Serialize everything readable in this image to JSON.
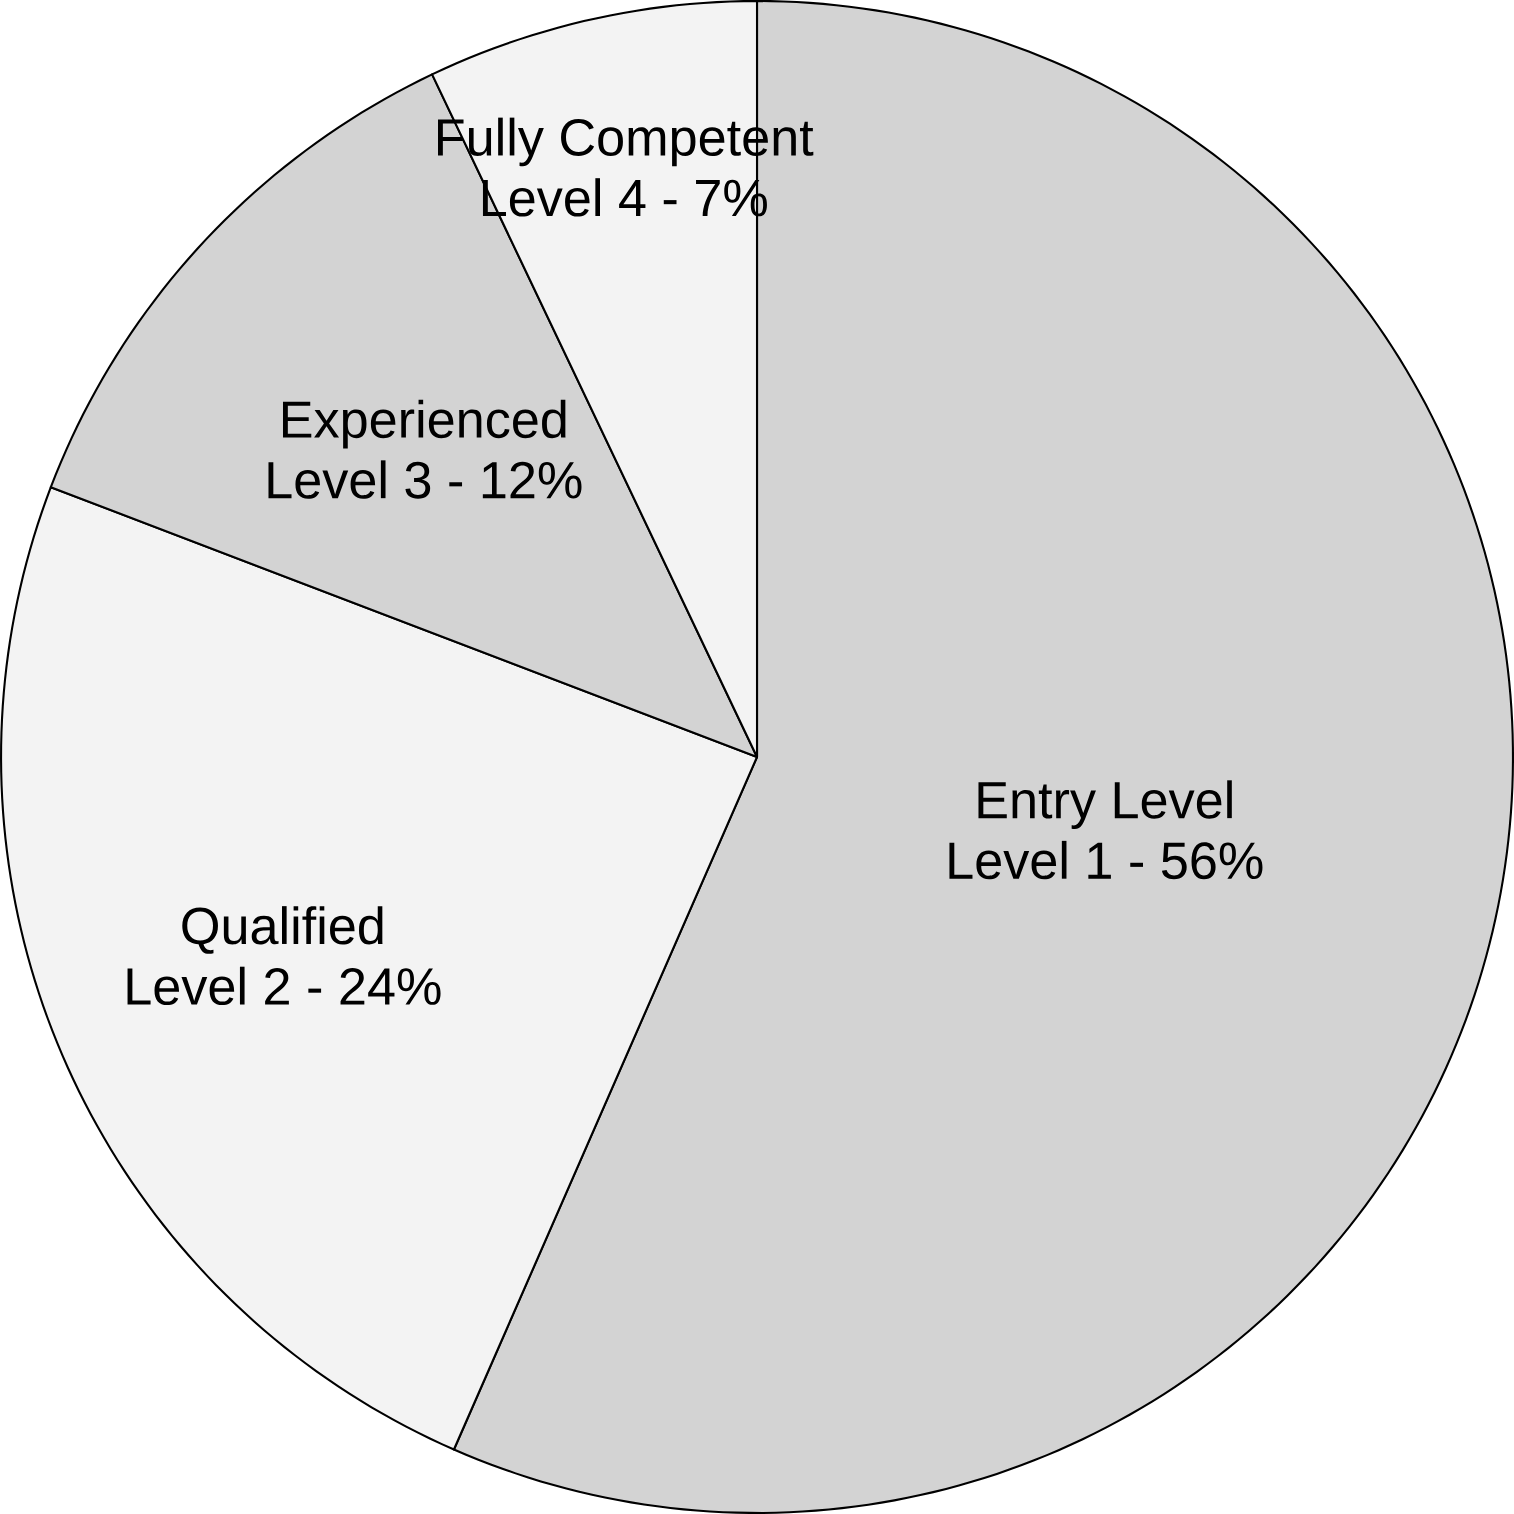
{
  "chart_data": {
    "type": "pie",
    "categories": [
      "Entry Level",
      "Qualified",
      "Experienced",
      "Fully Competent"
    ],
    "values": [
      56,
      24,
      12,
      7
    ],
    "annotations": [
      "Level 1 - 56%",
      "Level 2 - 24%",
      "Level 3 - 12%",
      "Level 4 - 7%"
    ],
    "colors": [
      "#d3d3d3",
      "#f3f3f3",
      "#d3d3d3",
      "#f3f3f3"
    ]
  }
}
